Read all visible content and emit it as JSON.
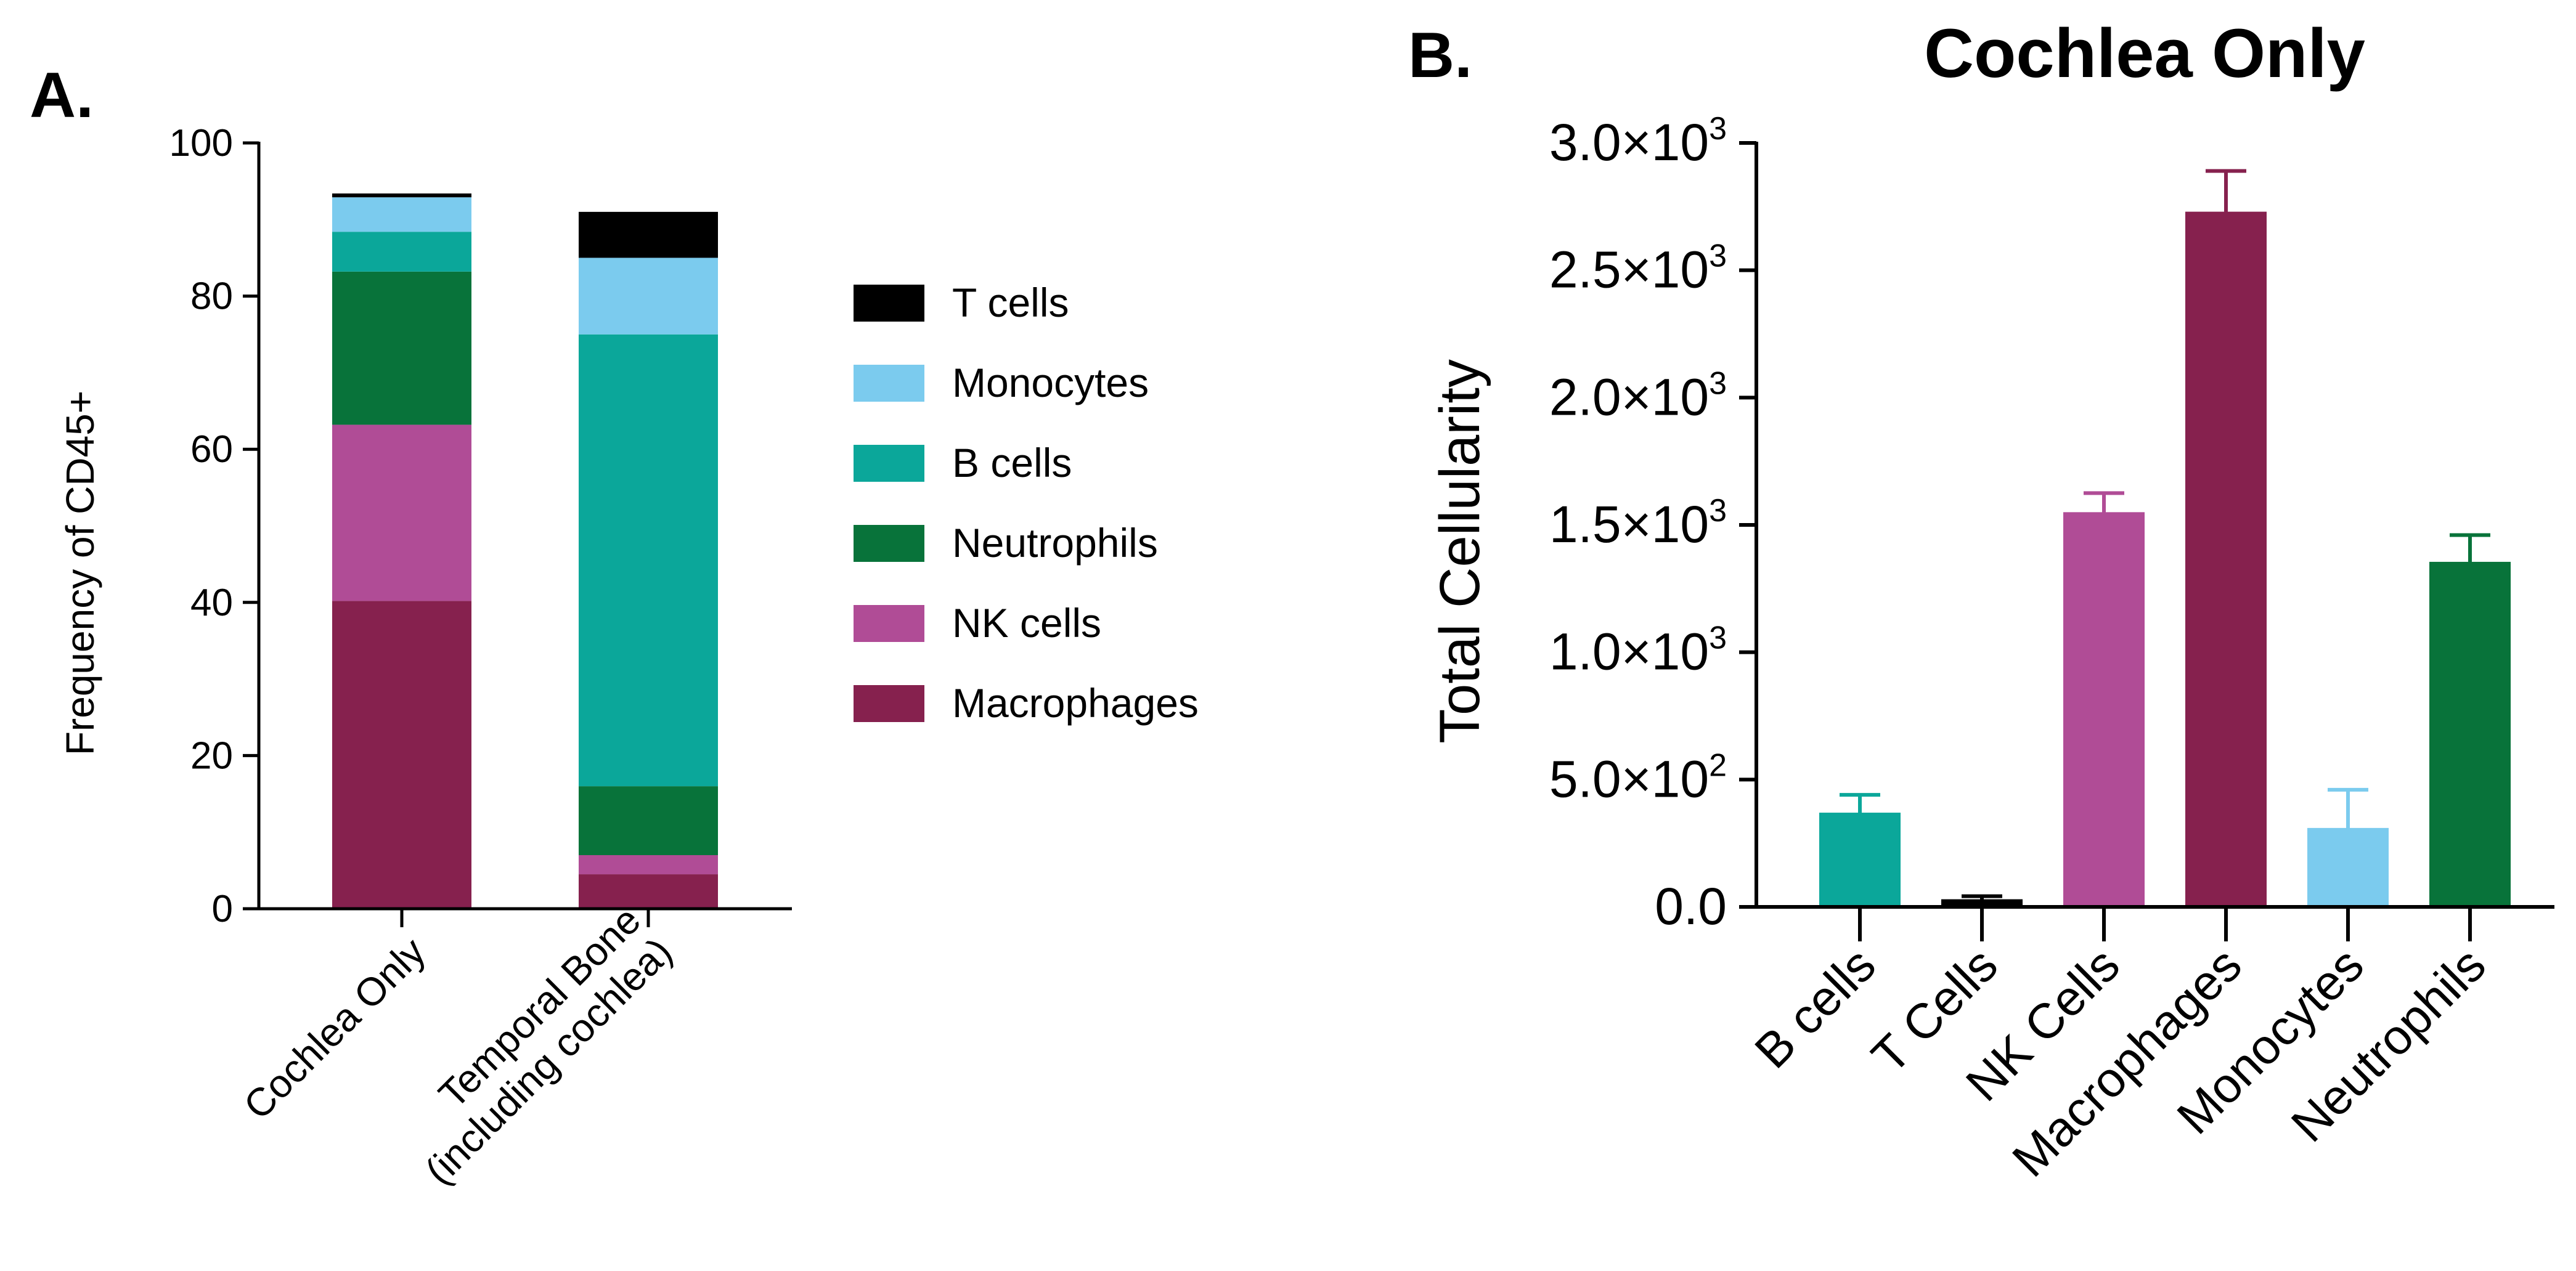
{
  "figure": {
    "panel_a_label": "A.",
    "panel_b_label": "B."
  },
  "chart_data": [
    {
      "type": "bar",
      "stacked": true,
      "panel": "A.",
      "title": "",
      "xlabel": "",
      "ylabel": "Frequency of CD45+",
      "ylim": [
        0,
        100
      ],
      "yticks": [
        "0",
        "20",
        "40",
        "60",
        "80",
        "100"
      ],
      "categories": [
        "Cochlea Only",
        "Temporal Bone (including cochlea)"
      ],
      "category_lines": [
        [
          "Cochlea Only"
        ],
        [
          "Temporal Bone",
          "(including cochlea)"
        ]
      ],
      "legend_position": "right",
      "series": [
        {
          "name": "Macrophages",
          "color": "#86214E",
          "values": [
            40.2,
            4.5
          ]
        },
        {
          "name": "NK cells",
          "color": "#B04C96",
          "values": [
            23.0,
            2.5
          ]
        },
        {
          "name": "Neutrophils",
          "color": "#08733A",
          "values": [
            20.0,
            9.0
          ]
        },
        {
          "name": "B cells",
          "color": "#0BA79A",
          "values": [
            5.2,
            59.0
          ]
        },
        {
          "name": "Monocytes",
          "color": "#7BCBEE",
          "values": [
            4.5,
            10.0
          ]
        },
        {
          "name": "T cells",
          "color": "#000000",
          "values": [
            0.5,
            6.0
          ]
        }
      ],
      "legend_order": [
        "T cells",
        "Monocytes",
        "B cells",
        "Neutrophils",
        "NK cells",
        "Macrophages"
      ]
    },
    {
      "type": "bar",
      "panel": "B.",
      "title": "Cochlea Only",
      "xlabel": "",
      "ylabel": "Total Cellularity",
      "ylim": [
        0,
        3000
      ],
      "yticks": [
        {
          "value": 0,
          "mantissa": "0.0",
          "exp": ""
        },
        {
          "value": 500,
          "mantissa": "5.0×10",
          "exp": "2"
        },
        {
          "value": 1000,
          "mantissa": "1.0×10",
          "exp": "3"
        },
        {
          "value": 1500,
          "mantissa": "1.5×10",
          "exp": "3"
        },
        {
          "value": 2000,
          "mantissa": "2.0×10",
          "exp": "3"
        },
        {
          "value": 2500,
          "mantissa": "2.5×10",
          "exp": "3"
        },
        {
          "value": 3000,
          "mantissa": "3.0×10",
          "exp": "3"
        }
      ],
      "categories": [
        "B cells",
        "T Cells",
        "NK Cells",
        "Macrophages",
        "Monocytes",
        "Neutrophils"
      ],
      "values": [
        370,
        30,
        1550,
        2730,
        310,
        1355
      ],
      "errors": [
        70,
        12,
        75,
        160,
        150,
        105
      ],
      "colors": [
        "#0BA79A",
        "#000000",
        "#B04C96",
        "#86214E",
        "#7BCBEE",
        "#08733A"
      ]
    }
  ]
}
